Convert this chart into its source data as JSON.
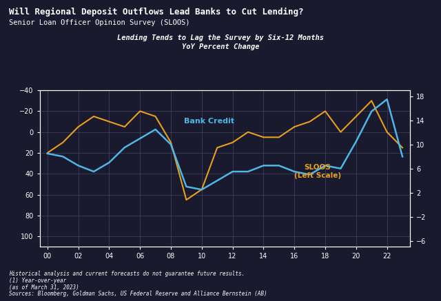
{
  "title": "Will Regional Deposit Outflows Lead Banks to Cut Lending?",
  "subtitle": "Senior Loan Officer Opinion Survey (SLOOS)",
  "chart_title_line1": "Lending Tends to Lag the Survey by Six-12 Months",
  "chart_title_line2": "YoY Percent Change",
  "bg_color": "#1a1a2e",
  "plot_bg_color": "#1a1a2e",
  "text_color": "#ffffff",
  "grid_color": "#444466",
  "bank_credit_color": "#4db8e8",
  "sloos_color": "#e8a020",
  "x_labels": [
    "00",
    "02",
    "04",
    "06",
    "08",
    "10",
    "12",
    "14",
    "16",
    "18",
    "20",
    "22"
  ],
  "left_yticks": [
    -40,
    -20,
    0,
    20,
    40,
    60,
    80,
    100
  ],
  "right_yticks": [
    18,
    14,
    10,
    6,
    2,
    -2,
    -6
  ],
  "left_ylim": [
    -40,
    110
  ],
  "right_ylim": [
    -7,
    19
  ],
  "footnote_line1": "Historical analysis and current forecasts do not guarantee future results.",
  "footnote_line2": "(1) Year-over-year",
  "footnote_line3": "(as of March 31, 2023)",
  "footnote_line4": "Sources: Bloomberg, Goldman Sachs, US Federal Reserve and Alliance Bernstein (AB)",
  "bank_credit_label": "Bank Credit",
  "sloos_label": "SLOOS\n(Left Scale)",
  "years": [
    2000,
    2001,
    2002,
    2003,
    2004,
    2005,
    2006,
    2007,
    2008,
    2009,
    2010,
    2011,
    2012,
    2013,
    2014,
    2015,
    2016,
    2017,
    2018,
    2019,
    2020,
    2021,
    2022,
    2023
  ],
  "bank_credit": [
    8.5,
    8.0,
    6.5,
    5.5,
    7.0,
    9.5,
    11.0,
    12.5,
    10.0,
    3.0,
    2.5,
    4.0,
    5.5,
    5.5,
    6.5,
    6.5,
    5.5,
    5.0,
    6.5,
    6.0,
    10.5,
    15.5,
    17.5,
    8.0
  ],
  "sloos": [
    20,
    10,
    -5,
    -15,
    -10,
    -5,
    -20,
    -15,
    10,
    65,
    55,
    15,
    10,
    0,
    5,
    5,
    -5,
    -10,
    -20,
    0,
    -15,
    -30,
    0,
    15
  ]
}
